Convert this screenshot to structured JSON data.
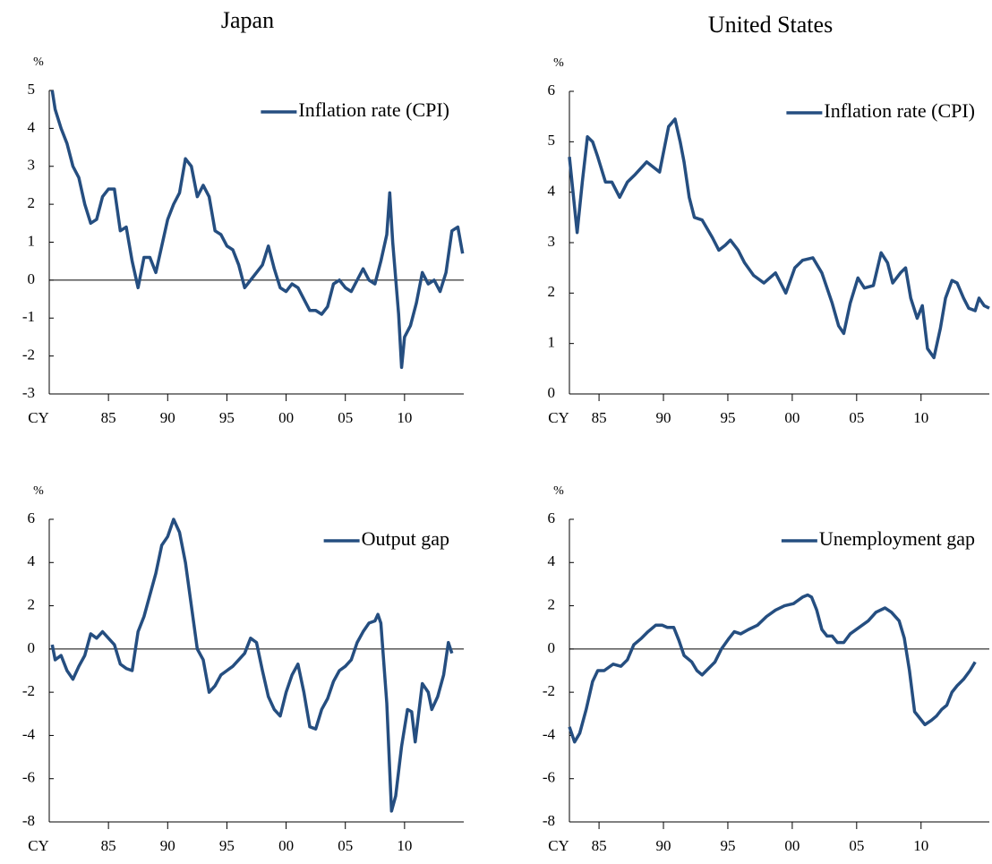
{
  "chart_data": [
    {
      "type": "line",
      "title": "Japan",
      "y_unit": "%",
      "x_label": "CY",
      "x": [
        1980.25,
        1980.5,
        1981,
        1981.5,
        1982,
        1982.5,
        1983,
        1983.5,
        1984,
        1984.5,
        1985,
        1985.5,
        1986,
        1986.5,
        1987,
        1987.5,
        1988,
        1988.5,
        1989,
        1989.5,
        1990,
        1990.5,
        1991,
        1991.5,
        1992,
        1992.5,
        1993,
        1993.5,
        1994,
        1994.5,
        1995,
        1995.5,
        1996,
        1996.5,
        1997,
        1997.5,
        1998,
        1998.5,
        1999,
        1999.5,
        2000,
        2000.5,
        2001,
        2001.5,
        2002,
        2002.5,
        2003,
        2003.5,
        2004,
        2004.5,
        2005,
        2005.5,
        2006,
        2006.5,
        2007,
        2007.5,
        2008,
        2008.5,
        2008.75,
        2009,
        2009.5,
        2009.75,
        2010,
        2010.5,
        2011,
        2011.5,
        2012,
        2012.5,
        2013,
        2013.5,
        2014,
        2014.5,
        2014.9
      ],
      "series": [
        {
          "name": "Inflation rate (CPI)",
          "color": "#254e80",
          "values": [
            5,
            4.5,
            4.0,
            3.6,
            3.0,
            2.7,
            2.0,
            1.5,
            1.6,
            2.2,
            2.4,
            2.4,
            1.3,
            1.4,
            0.5,
            -0.2,
            0.6,
            0.6,
            0.2,
            0.9,
            1.6,
            2.0,
            2.3,
            3.2,
            3.0,
            2.2,
            2.5,
            2.2,
            1.3,
            1.2,
            0.9,
            0.8,
            0.4,
            -0.2,
            0.0,
            0.2,
            0.4,
            0.9,
            0.3,
            -0.2,
            -0.3,
            -0.1,
            -0.2,
            -0.5,
            -0.8,
            -0.8,
            -0.9,
            -0.7,
            -0.1,
            0.0,
            -0.2,
            -0.3,
            0.0,
            0.3,
            0.0,
            -0.1,
            0.5,
            1.2,
            2.3,
            1.0,
            -0.9,
            -2.3,
            -1.5,
            -1.2,
            -0.6,
            0.2,
            -0.1,
            0.0,
            -0.3,
            0.2,
            1.3,
            1.4,
            0.7
          ]
        }
      ],
      "xlim": [
        1980,
        2015
      ],
      "ylim": [
        -3,
        5
      ],
      "xticks": [
        {
          "value": 1985,
          "label": "85"
        },
        {
          "value": 1990,
          "label": "90"
        },
        {
          "value": 1995,
          "label": "95"
        },
        {
          "value": 2000,
          "label": "00"
        },
        {
          "value": 2005,
          "label": "05"
        },
        {
          "value": 2010,
          "label": "10"
        }
      ],
      "yticks": [
        -3,
        -2,
        -1,
        0,
        1,
        2,
        3,
        4,
        5
      ],
      "zero_line": true,
      "legend": "upper right"
    },
    {
      "type": "line",
      "title": "United States",
      "y_unit": "%",
      "x_label": "CY",
      "x": [
        1982.7,
        1983.3,
        1983.7,
        1984.1,
        1984.5,
        1984.9,
        1985.5,
        1986.0,
        1986.6,
        1987.2,
        1987.8,
        1988.7,
        1989.7,
        1990.4,
        1990.9,
        1991.3,
        1991.6,
        1992.0,
        1992.4,
        1993.0,
        1993.8,
        1994.3,
        1994.8,
        1995.2,
        1995.8,
        1996.3,
        1997.0,
        1997.8,
        1998.7,
        1999.5,
        2000.2,
        2000.8,
        2001.6,
        2002.3,
        2003.1,
        2003.6,
        2004.0,
        2004.5,
        2005.1,
        2005.6,
        2006.3,
        2006.9,
        2007.4,
        2007.8,
        2008.4,
        2008.8,
        2009.2,
        2009.7,
        2010.1,
        2010.5,
        2011.0,
        2011.5,
        2011.9,
        2012.4,
        2012.8,
        2013.3,
        2013.7,
        2014.2,
        2014.5,
        2014.9,
        2015.3
      ],
      "series": [
        {
          "name": "Inflation rate (CPI)",
          "color": "#254e80",
          "values": [
            4.7,
            3.2,
            4.2,
            5.1,
            5.0,
            4.7,
            4.2,
            4.2,
            3.9,
            4.2,
            4.35,
            4.6,
            4.4,
            5.3,
            5.45,
            5.0,
            4.6,
            3.9,
            3.5,
            3.45,
            3.1,
            2.85,
            2.95,
            3.05,
            2.85,
            2.6,
            2.35,
            2.2,
            2.4,
            2.0,
            2.5,
            2.65,
            2.7,
            2.4,
            1.8,
            1.35,
            1.2,
            1.8,
            2.3,
            2.1,
            2.15,
            2.8,
            2.6,
            2.2,
            2.4,
            2.5,
            1.9,
            1.5,
            1.75,
            0.9,
            0.72,
            1.3,
            1.9,
            2.25,
            2.2,
            1.9,
            1.7,
            1.65,
            1.9,
            1.75,
            1.7
          ]
        }
      ],
      "xlim": [
        1982.7,
        2015.3
      ],
      "ylim": [
        0,
        6
      ],
      "xticks": [
        {
          "value": 1985,
          "label": "85"
        },
        {
          "value": 1990,
          "label": "90"
        },
        {
          "value": 1995,
          "label": "95"
        },
        {
          "value": 2000,
          "label": "00"
        },
        {
          "value": 2005,
          "label": "05"
        },
        {
          "value": 2010,
          "label": "10"
        }
      ],
      "yticks": [
        0,
        1,
        2,
        3,
        4,
        5,
        6
      ],
      "zero_line": false,
      "legend": "upper right"
    },
    {
      "type": "line",
      "y_unit": "%",
      "x_label": "CY",
      "x": [
        1980.25,
        1980.5,
        1981,
        1981.5,
        1982,
        1982.5,
        1983,
        1983.5,
        1984,
        1984.5,
        1985,
        1985.5,
        1986,
        1986.5,
        1987,
        1987.5,
        1988,
        1988.5,
        1989,
        1989.5,
        1990,
        1990.5,
        1991,
        1991.5,
        1992,
        1992.5,
        1993,
        1993.5,
        1994,
        1994.5,
        1995,
        1995.5,
        1996,
        1996.5,
        1997,
        1997.5,
        1998,
        1998.5,
        1999,
        1999.5,
        2000,
        2000.5,
        2001,
        2001.5,
        2002,
        2002.5,
        2003,
        2003.5,
        2004,
        2004.5,
        2005,
        2005.5,
        2006,
        2006.5,
        2007,
        2007.5,
        2007.75,
        2008,
        2008.5,
        2008.9,
        2009.25,
        2009.75,
        2010.25,
        2010.6,
        2010.9,
        2011.5,
        2012,
        2012.3,
        2012.8,
        2013.3,
        2013.7,
        2014
      ],
      "series": [
        {
          "name": "Output gap",
          "color": "#254e80",
          "values": [
            0.2,
            -0.5,
            -0.3,
            -1.0,
            -1.4,
            -0.8,
            -0.3,
            0.7,
            0.5,
            0.8,
            0.5,
            0.2,
            -0.7,
            -0.9,
            -1.0,
            0.8,
            1.5,
            2.5,
            3.5,
            4.8,
            5.2,
            6.0,
            5.4,
            4.0,
            2.0,
            0.0,
            -0.5,
            -2.0,
            -1.7,
            -1.2,
            -1.0,
            -0.8,
            -0.5,
            -0.2,
            0.5,
            0.3,
            -1.0,
            -2.2,
            -2.8,
            -3.1,
            -2.0,
            -1.2,
            -0.7,
            -2.0,
            -3.6,
            -3.7,
            -2.8,
            -2.3,
            -1.5,
            -1.0,
            -0.8,
            -0.5,
            0.3,
            0.8,
            1.2,
            1.3,
            1.6,
            1.2,
            -2.5,
            -7.5,
            -6.8,
            -4.5,
            -2.8,
            -2.9,
            -4.3,
            -1.6,
            -2.0,
            -2.8,
            -2.2,
            -1.2,
            0.3,
            -0.2
          ]
        }
      ],
      "xlim": [
        1980,
        2015
      ],
      "ylim": [
        -8,
        6
      ],
      "xticks": [
        {
          "value": 1985,
          "label": "85"
        },
        {
          "value": 1990,
          "label": "90"
        },
        {
          "value": 1995,
          "label": "95"
        },
        {
          "value": 2000,
          "label": "00"
        },
        {
          "value": 2005,
          "label": "05"
        },
        {
          "value": 2010,
          "label": "10"
        }
      ],
      "yticks": [
        -8,
        -6,
        -4,
        -2,
        0,
        2,
        4,
        6
      ],
      "zero_line": true,
      "legend": "upper right"
    },
    {
      "type": "line",
      "y_unit": "%",
      "x_label": "CY",
      "x": [
        1982.7,
        1983.1,
        1983.5,
        1984.0,
        1984.5,
        1984.9,
        1985.4,
        1986.1,
        1986.7,
        1987.2,
        1987.7,
        1988.3,
        1988.8,
        1989.4,
        1989.9,
        1990.3,
        1990.8,
        1991.2,
        1991.6,
        1992.2,
        1992.6,
        1993.0,
        1993.5,
        1994.0,
        1994.5,
        1995.1,
        1995.5,
        1996.0,
        1996.6,
        1997.3,
        1998.0,
        1998.7,
        1999.4,
        2000.1,
        2000.8,
        2001.2,
        2001.5,
        2001.9,
        2002.3,
        2002.7,
        2003.1,
        2003.5,
        2004.0,
        2004.5,
        2005.2,
        2005.9,
        2006.5,
        2007.2,
        2007.7,
        2008.3,
        2008.7,
        2009.1,
        2009.5,
        2009.9,
        2010.3,
        2010.8,
        2011.2,
        2011.6,
        2012.0,
        2012.4,
        2012.8,
        2013.3,
        2013.8,
        2014.2
      ],
      "series": [
        {
          "name": "Unemployment gap",
          "color": "#254e80",
          "values": [
            -3.6,
            -4.3,
            -3.9,
            -2.8,
            -1.5,
            -1.0,
            -1.0,
            -0.7,
            -0.8,
            -0.5,
            0.2,
            0.5,
            0.8,
            1.1,
            1.1,
            1.0,
            1.0,
            0.4,
            -0.3,
            -0.6,
            -1.0,
            -1.2,
            -0.9,
            -0.6,
            0.0,
            0.5,
            0.8,
            0.7,
            0.9,
            1.1,
            1.5,
            1.8,
            2.0,
            2.1,
            2.4,
            2.5,
            2.4,
            1.8,
            0.9,
            0.6,
            0.6,
            0.3,
            0.3,
            0.7,
            1.0,
            1.3,
            1.7,
            1.9,
            1.7,
            1.3,
            0.5,
            -1.0,
            -2.9,
            -3.2,
            -3.5,
            -3.3,
            -3.1,
            -2.8,
            -2.6,
            -2.0,
            -1.7,
            -1.4,
            -1.0,
            -0.6
          ]
        }
      ],
      "xlim": [
        1982.7,
        2015.3
      ],
      "ylim": [
        -8,
        6
      ],
      "xticks": [
        {
          "value": 1985,
          "label": "85"
        },
        {
          "value": 1990,
          "label": "90"
        },
        {
          "value": 1995,
          "label": "95"
        },
        {
          "value": 2000,
          "label": "00"
        },
        {
          "value": 2005,
          "label": "05"
        },
        {
          "value": 2010,
          "label": "10"
        }
      ],
      "yticks": [
        -8,
        -6,
        -4,
        -2,
        0,
        2,
        4,
        6
      ],
      "zero_line": true,
      "legend": "upper right"
    }
  ]
}
